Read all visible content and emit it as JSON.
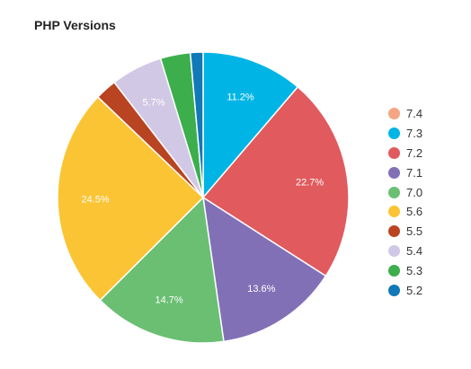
{
  "header": {
    "title": "PHP Versions"
  },
  "chart_data": {
    "type": "pie",
    "title": "PHP Versions",
    "legend": "right",
    "slices": [
      {
        "name": "7.4",
        "value": 0.0,
        "color": "#f4a582"
      },
      {
        "name": "7.3",
        "value": 11.2,
        "color": "#00b5e6",
        "label": "11.2%"
      },
      {
        "name": "7.2",
        "value": 22.7,
        "color": "#e15a5e",
        "label": "22.7%"
      },
      {
        "name": "7.1",
        "value": 13.6,
        "color": "#8270b7",
        "label": "13.6%"
      },
      {
        "name": "7.0",
        "value": 14.7,
        "color": "#6abf73",
        "label": "14.7%"
      },
      {
        "name": "5.6",
        "value": 24.5,
        "color": "#fbc434",
        "label": "24.5%"
      },
      {
        "name": "5.5",
        "value": 2.4,
        "color": "#b94422"
      },
      {
        "name": "5.4",
        "value": 5.7,
        "color": "#d0c8e4",
        "label": "5.7%"
      },
      {
        "name": "5.3",
        "value": 3.3,
        "color": "#3cae4c"
      },
      {
        "name": "5.2",
        "value": 1.4,
        "color": "#1179b8"
      }
    ]
  }
}
